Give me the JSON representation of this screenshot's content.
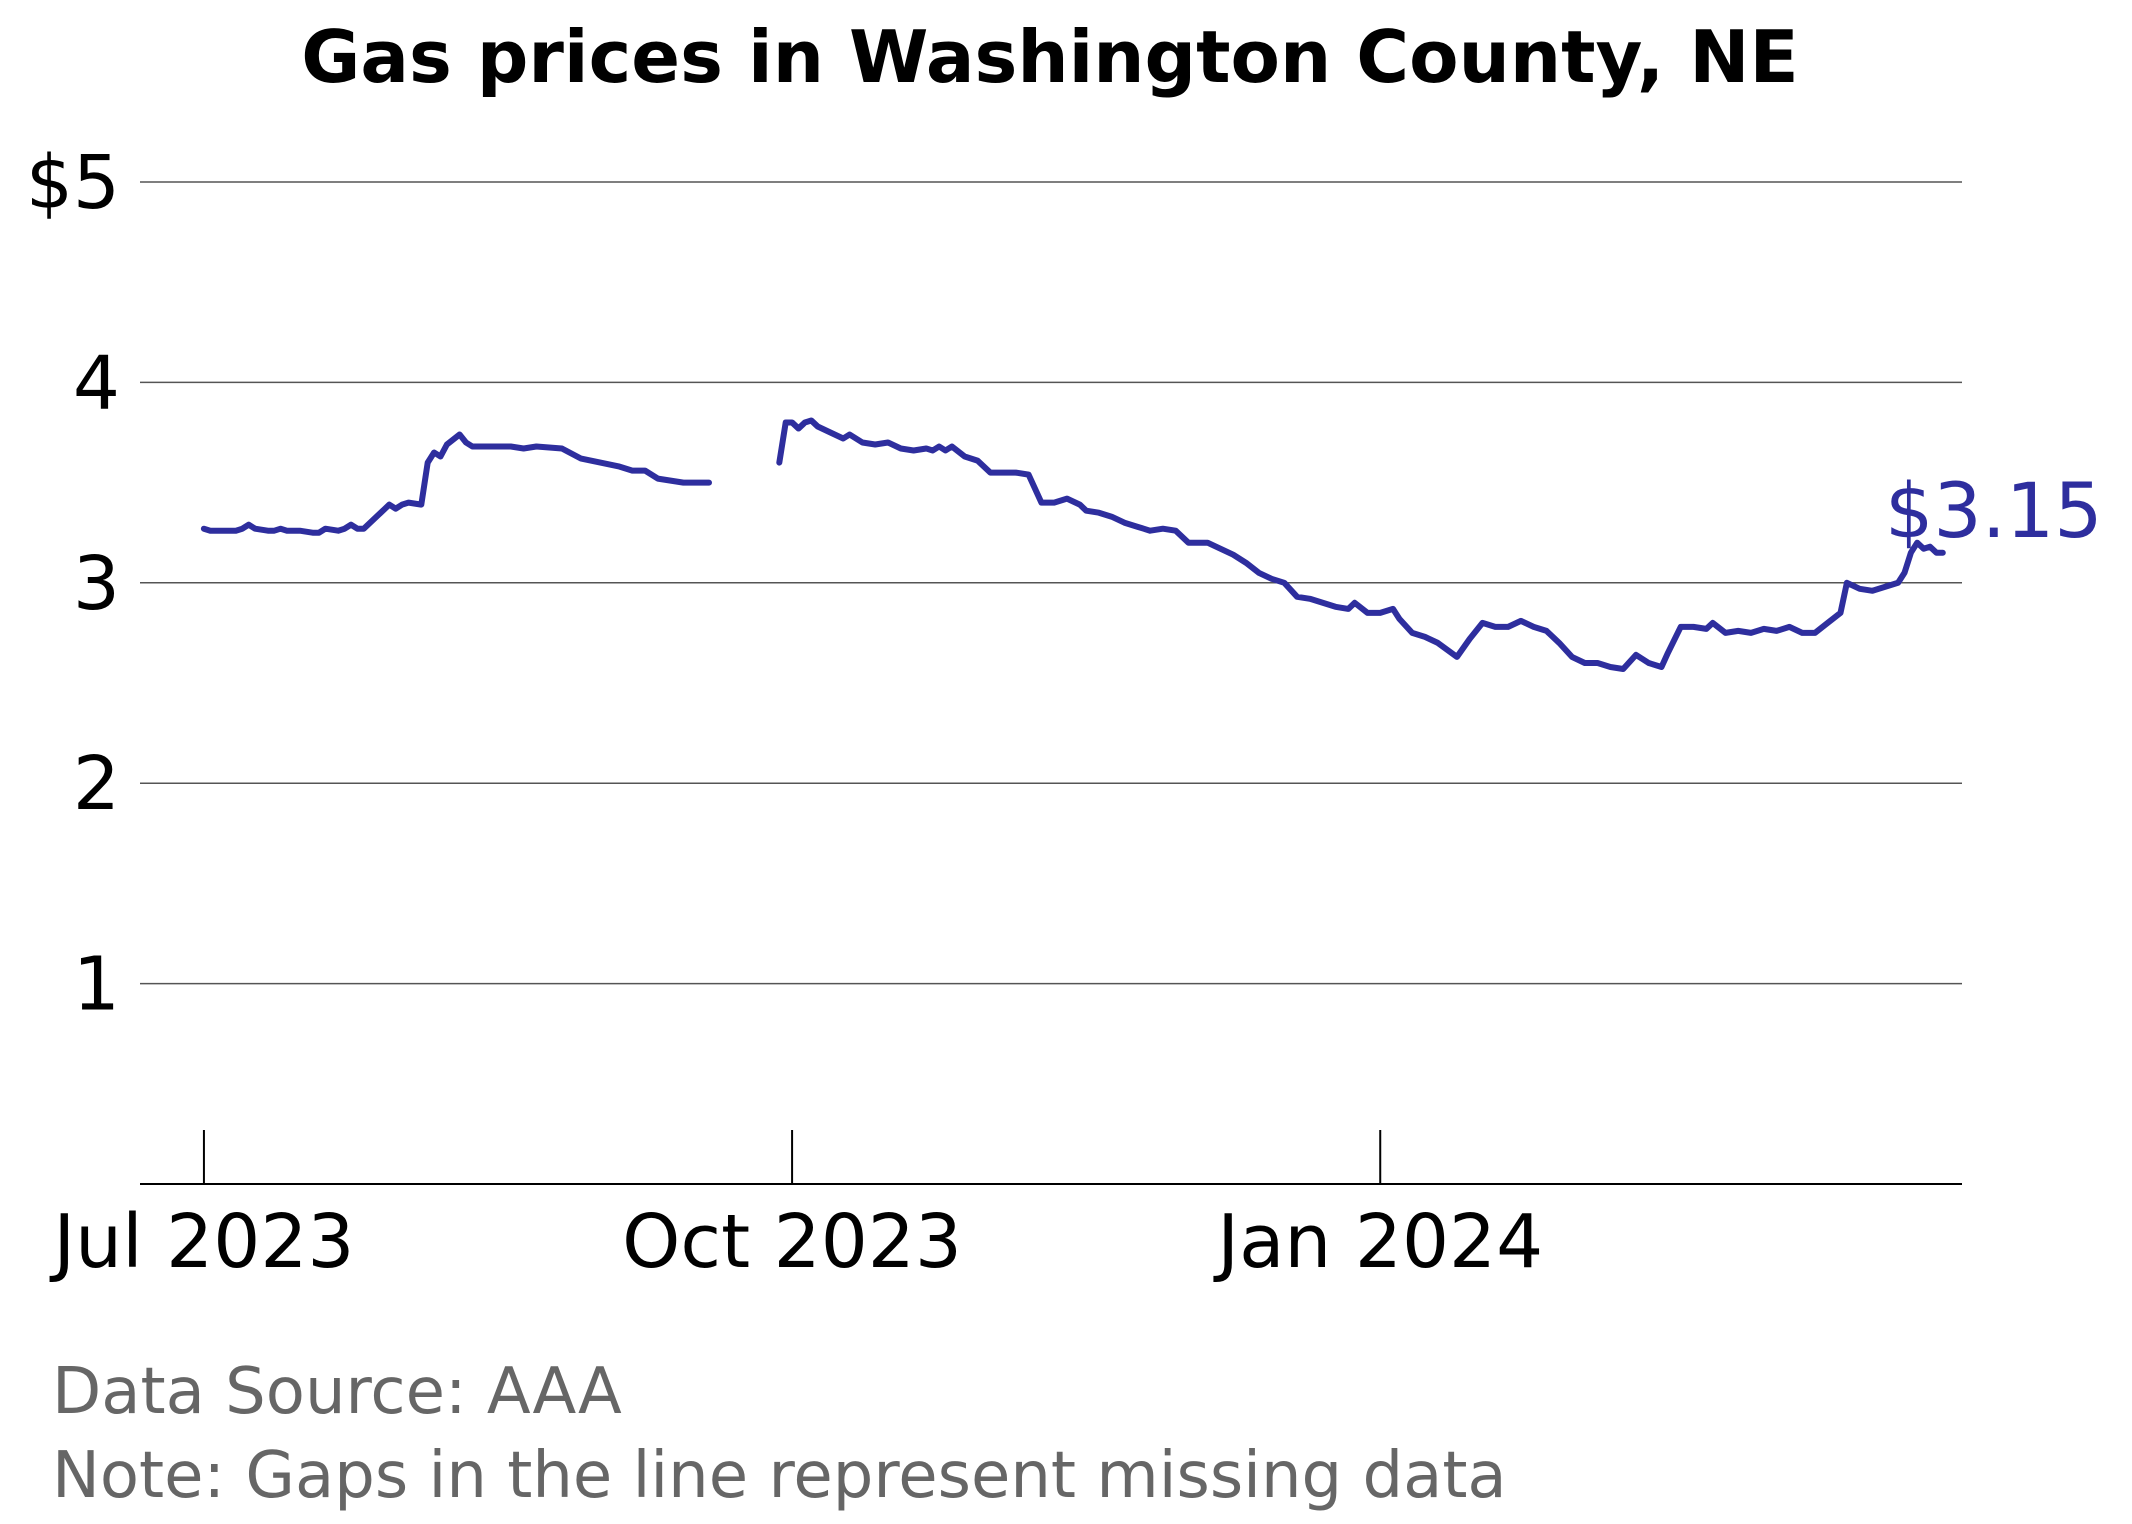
{
  "chart_data": {
    "type": "line",
    "title": "Gas prices in Washington County, NE",
    "subtitle": "",
    "xlabel": "",
    "ylabel": "",
    "ylim": [
      0,
      5
    ],
    "xlim": [
      "2023-06-21",
      "2024-04-01"
    ],
    "y_ticks": [
      {
        "value": 1,
        "label": "1"
      },
      {
        "value": 2,
        "label": "2"
      },
      {
        "value": 3,
        "label": "3"
      },
      {
        "value": 4,
        "label": "4"
      },
      {
        "value": 5,
        "label": "$5"
      }
    ],
    "x_ticks": [
      {
        "date": "2023-07-01",
        "label": "Jul 2023"
      },
      {
        "date": "2023-10-01",
        "label": "Oct 2023"
      },
      {
        "date": "2024-01-01",
        "label": "Jan 2024"
      }
    ],
    "grid": "horizontal",
    "legend": "none",
    "line_color": "#2e2e9e",
    "end_label": "$3.15",
    "series": [
      {
        "name": "",
        "segments": [
          [
            [
              "2023-07-01",
              3.27
            ],
            [
              "2023-07-02",
              3.26
            ],
            [
              "2023-07-03",
              3.26
            ],
            [
              "2023-07-04",
              3.26
            ],
            [
              "2023-07-06",
              3.26
            ],
            [
              "2023-07-07",
              3.27
            ],
            [
              "2023-07-08",
              3.29
            ],
            [
              "2023-07-09",
              3.27
            ],
            [
              "2023-07-11",
              3.26
            ],
            [
              "2023-07-12",
              3.26
            ],
            [
              "2023-07-13",
              3.27
            ],
            [
              "2023-07-14",
              3.26
            ],
            [
              "2023-07-16",
              3.26
            ],
            [
              "2023-07-18",
              3.25
            ],
            [
              "2023-07-19",
              3.25
            ],
            [
              "2023-07-20",
              3.27
            ],
            [
              "2023-07-22",
              3.26
            ],
            [
              "2023-07-23",
              3.27
            ],
            [
              "2023-07-24",
              3.29
            ],
            [
              "2023-07-25",
              3.27
            ],
            [
              "2023-07-26",
              3.27
            ],
            [
              "2023-07-28",
              3.33
            ],
            [
              "2023-07-30",
              3.39
            ],
            [
              "2023-07-31",
              3.37
            ],
            [
              "2023-08-01",
              3.39
            ],
            [
              "2023-08-02",
              3.4
            ],
            [
              "2023-08-04",
              3.39
            ],
            [
              "2023-08-05",
              3.6
            ],
            [
              "2023-08-06",
              3.65
            ],
            [
              "2023-08-07",
              3.63
            ],
            [
              "2023-08-08",
              3.69
            ],
            [
              "2023-08-10",
              3.74
            ],
            [
              "2023-08-11",
              3.7
            ],
            [
              "2023-08-12",
              3.68
            ],
            [
              "2023-08-15",
              3.68
            ],
            [
              "2023-08-18",
              3.68
            ],
            [
              "2023-08-20",
              3.67
            ],
            [
              "2023-08-22",
              3.68
            ],
            [
              "2023-08-26",
              3.67
            ],
            [
              "2023-08-29",
              3.62
            ],
            [
              "2023-09-01",
              3.6
            ],
            [
              "2023-09-04",
              3.58
            ],
            [
              "2023-09-06",
              3.56
            ],
            [
              "2023-09-08",
              3.56
            ],
            [
              "2023-09-10",
              3.52
            ],
            [
              "2023-09-12",
              3.51
            ],
            [
              "2023-09-14",
              3.5
            ],
            [
              "2023-09-16",
              3.5
            ],
            [
              "2023-09-18",
              3.5
            ]
          ],
          [
            [
              "2023-09-29",
              3.6
            ],
            [
              "2023-09-30",
              3.8
            ],
            [
              "2023-10-01",
              3.8
            ],
            [
              "2023-10-02",
              3.77
            ],
            [
              "2023-10-03",
              3.8
            ],
            [
              "2023-10-04",
              3.81
            ],
            [
              "2023-10-05",
              3.78
            ],
            [
              "2023-10-07",
              3.75
            ],
            [
              "2023-10-09",
              3.72
            ],
            [
              "2023-10-10",
              3.74
            ],
            [
              "2023-10-12",
              3.7
            ],
            [
              "2023-10-14",
              3.69
            ],
            [
              "2023-10-16",
              3.7
            ],
            [
              "2023-10-18",
              3.67
            ],
            [
              "2023-10-20",
              3.66
            ],
            [
              "2023-10-22",
              3.67
            ],
            [
              "2023-10-23",
              3.66
            ],
            [
              "2023-10-24",
              3.68
            ],
            [
              "2023-10-25",
              3.66
            ],
            [
              "2023-10-26",
              3.68
            ],
            [
              "2023-10-28",
              3.63
            ],
            [
              "2023-10-30",
              3.61
            ],
            [
              "2023-11-01",
              3.55
            ],
            [
              "2023-11-03",
              3.55
            ],
            [
              "2023-11-05",
              3.55
            ],
            [
              "2023-11-07",
              3.54
            ],
            [
              "2023-11-09",
              3.4
            ],
            [
              "2023-11-11",
              3.4
            ],
            [
              "2023-11-13",
              3.42
            ],
            [
              "2023-11-15",
              3.39
            ],
            [
              "2023-11-16",
              3.36
            ],
            [
              "2023-11-18",
              3.35
            ],
            [
              "2023-11-20",
              3.33
            ],
            [
              "2023-11-22",
              3.3
            ],
            [
              "2023-11-24",
              3.28
            ],
            [
              "2023-11-26",
              3.26
            ],
            [
              "2023-11-28",
              3.27
            ],
            [
              "2023-11-30",
              3.26
            ],
            [
              "2023-12-02",
              3.2
            ],
            [
              "2023-12-05",
              3.2
            ],
            [
              "2023-12-07",
              3.17
            ],
            [
              "2023-12-09",
              3.14
            ],
            [
              "2023-12-11",
              3.1
            ],
            [
              "2023-12-13",
              3.05
            ],
            [
              "2023-12-15",
              3.02
            ],
            [
              "2023-12-17",
              3.0
            ],
            [
              "2023-12-19",
              2.93
            ],
            [
              "2023-12-21",
              2.92
            ],
            [
              "2023-12-23",
              2.9
            ],
            [
              "2023-12-25",
              2.88
            ],
            [
              "2023-12-27",
              2.87
            ],
            [
              "2023-12-28",
              2.9
            ],
            [
              "2023-12-30",
              2.85
            ],
            [
              "2024-01-01",
              2.85
            ],
            [
              "2024-01-03",
              2.87
            ],
            [
              "2024-01-04",
              2.82
            ],
            [
              "2024-01-06",
              2.75
            ],
            [
              "2024-01-08",
              2.73
            ],
            [
              "2024-01-10",
              2.7
            ],
            [
              "2024-01-13",
              2.63
            ],
            [
              "2024-01-15",
              2.72
            ],
            [
              "2024-01-17",
              2.8
            ],
            [
              "2024-01-19",
              2.78
            ],
            [
              "2024-01-21",
              2.78
            ],
            [
              "2024-01-23",
              2.81
            ],
            [
              "2024-01-25",
              2.78
            ],
            [
              "2024-01-27",
              2.76
            ],
            [
              "2024-01-29",
              2.7
            ],
            [
              "2024-01-31",
              2.63
            ],
            [
              "2024-02-02",
              2.6
            ],
            [
              "2024-02-04",
              2.6
            ],
            [
              "2024-02-06",
              2.58
            ],
            [
              "2024-02-08",
              2.57
            ],
            [
              "2024-02-10",
              2.64
            ],
            [
              "2024-02-12",
              2.6
            ],
            [
              "2024-02-14",
              2.58
            ],
            [
              "2024-02-15",
              2.65
            ],
            [
              "2024-02-17",
              2.78
            ],
            [
              "2024-02-19",
              2.78
            ],
            [
              "2024-02-21",
              2.77
            ],
            [
              "2024-02-22",
              2.8
            ],
            [
              "2024-02-24",
              2.75
            ],
            [
              "2024-02-26",
              2.76
            ],
            [
              "2024-02-28",
              2.75
            ],
            [
              "2024-03-01",
              2.77
            ],
            [
              "2024-03-03",
              2.76
            ],
            [
              "2024-03-05",
              2.78
            ],
            [
              "2024-03-07",
              2.75
            ],
            [
              "2024-03-09",
              2.75
            ],
            [
              "2024-03-11",
              2.8
            ],
            [
              "2024-03-13",
              2.85
            ],
            [
              "2024-03-14",
              3.0
            ],
            [
              "2024-03-16",
              2.97
            ],
            [
              "2024-03-18",
              2.96
            ],
            [
              "2024-03-20",
              2.98
            ],
            [
              "2024-03-22",
              3.0
            ],
            [
              "2024-03-23",
              3.05
            ],
            [
              "2024-03-24",
              3.15
            ],
            [
              "2024-03-25",
              3.2
            ],
            [
              "2024-03-26",
              3.17
            ],
            [
              "2024-03-27",
              3.18
            ],
            [
              "2024-03-28",
              3.15
            ],
            [
              "2024-03-29",
              3.15
            ]
          ]
        ]
      }
    ],
    "footnotes": [
      "Data Source: AAA",
      "Note: Gaps in the line represent missing data"
    ]
  }
}
